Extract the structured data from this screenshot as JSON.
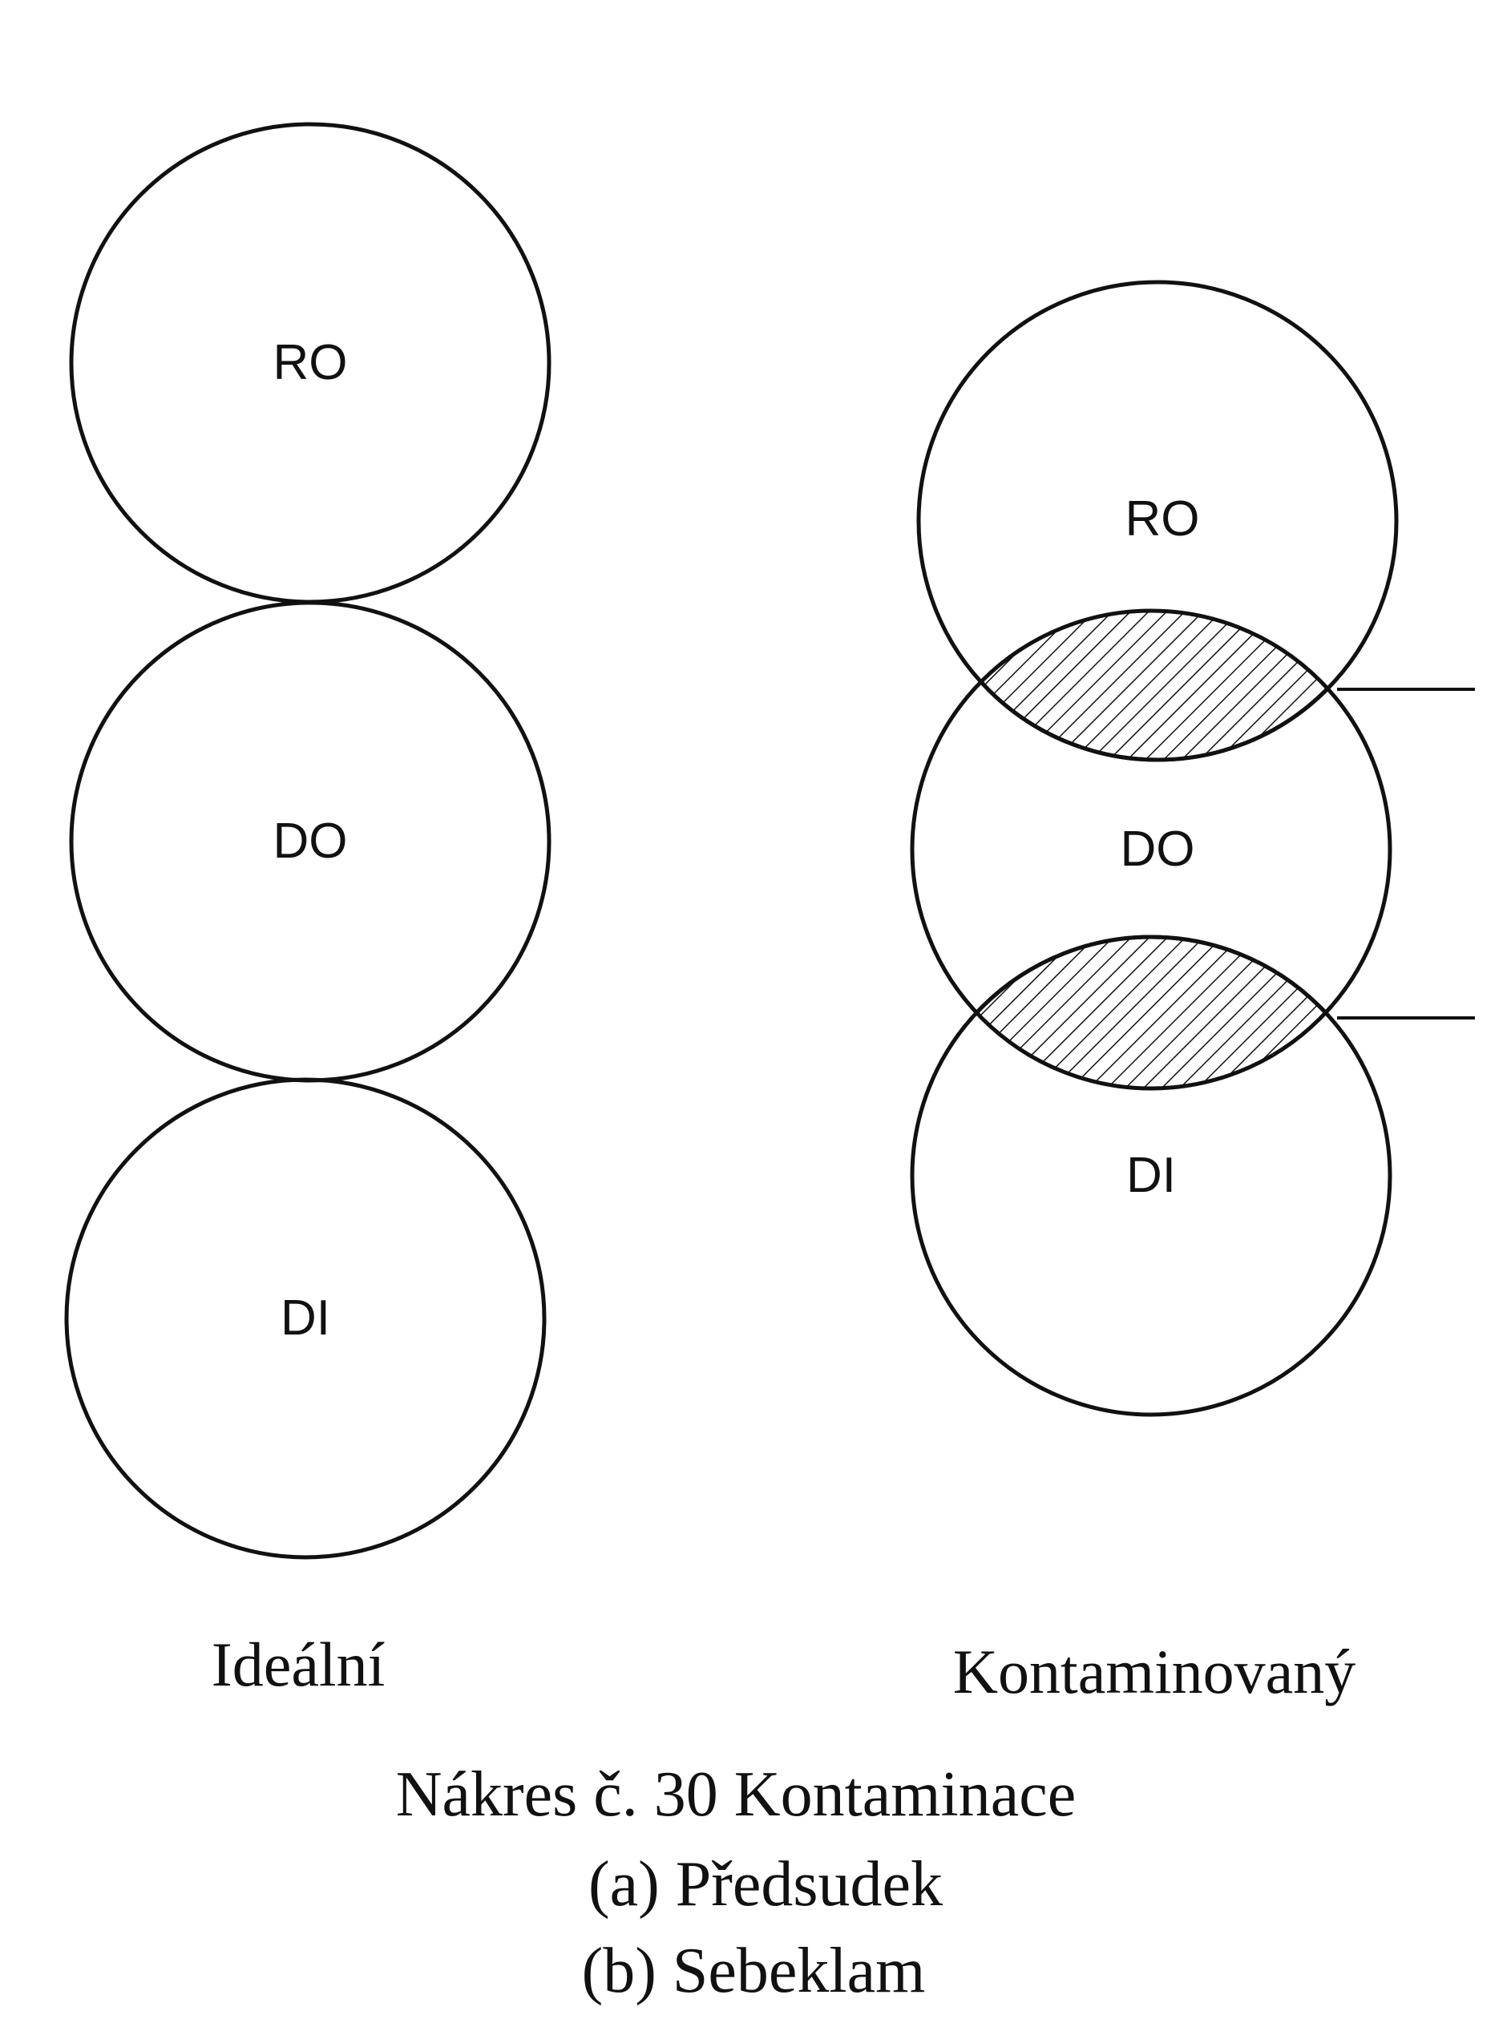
{
  "colors": {
    "stroke": "#111111",
    "background": "#ffffff"
  },
  "ideal": {
    "title": "Ideální",
    "labels": {
      "ro": "RO",
      "do": "DO",
      "di": "DI"
    }
  },
  "contaminated": {
    "title": "Kontaminovaný",
    "labels": {
      "ro": "RO",
      "do": "DO",
      "di": "DI"
    }
  },
  "caption": {
    "line1": "Nákres č. 30 Kontaminace",
    "line2": "(a) Předsudek",
    "line3": "(b) Sebeklam"
  }
}
